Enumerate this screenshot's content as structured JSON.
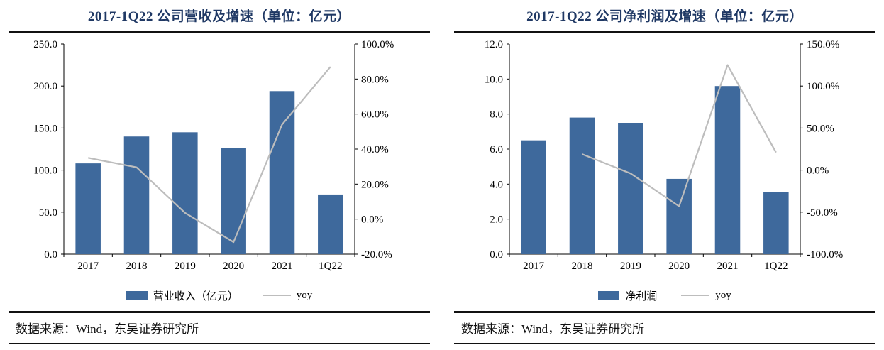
{
  "colors": {
    "bar": "#3E699C",
    "line": "#BDBDBD",
    "title": "#1F3864",
    "rule": "#111111",
    "axis": "#000000"
  },
  "chart_data": [
    {
      "type": "bar",
      "subtype": "bar+line-dual-axis",
      "title": "2017-1Q22 公司营收及增速（单位：亿元）",
      "categories": [
        "2017",
        "2018",
        "2019",
        "2020",
        "2021",
        "1Q22"
      ],
      "series": [
        {
          "name": "营业收入（亿元）",
          "kind": "bar",
          "axis": "left",
          "values": [
            108,
            140,
            145,
            126,
            194,
            71
          ]
        },
        {
          "name": "yoy",
          "kind": "line",
          "axis": "right",
          "values": [
            35,
            29.6,
            3.6,
            -13.1,
            54,
            87
          ]
        }
      ],
      "left_axis": {
        "min": 0,
        "max": 250,
        "ticks": [
          0,
          50,
          100,
          150,
          200,
          250
        ],
        "labels": [
          "0.0",
          "50.0",
          "100.0",
          "150.0",
          "200.0",
          "250.0"
        ]
      },
      "right_axis": {
        "min": -20,
        "max": 100,
        "ticks": [
          -20,
          0,
          20,
          40,
          60,
          80,
          100
        ],
        "labels": [
          "-20.0%",
          "0.0%",
          "20.0%",
          "40.0%",
          "60.0%",
          "80.0%",
          "100.0%"
        ]
      },
      "grid": false,
      "legend_position": "bottom",
      "source": "数据来源：Wind，东吴证券研究所"
    },
    {
      "type": "bar",
      "subtype": "bar+line-dual-axis",
      "title": "2017-1Q22 公司净利润及增速（单位：亿元）",
      "categories": [
        "2017",
        "2018",
        "2019",
        "2020",
        "2021",
        "1Q22"
      ],
      "series": [
        {
          "name": "净利润",
          "kind": "bar",
          "axis": "left",
          "values": [
            6.5,
            7.8,
            7.5,
            4.3,
            9.6,
            3.55
          ]
        },
        {
          "name": "yoy",
          "kind": "line",
          "axis": "right",
          "values": [
            null,
            19,
            -4,
            -43,
            125,
            21
          ]
        }
      ],
      "left_axis": {
        "min": 0,
        "max": 12,
        "ticks": [
          0,
          2,
          4,
          6,
          8,
          10,
          12
        ],
        "labels": [
          "0.0",
          "2.0",
          "4.0",
          "6.0",
          "8.0",
          "10.0",
          "12.0"
        ]
      },
      "right_axis": {
        "min": -100,
        "max": 150,
        "ticks": [
          -100,
          -50,
          0,
          50,
          100,
          150
        ],
        "labels": [
          "-100.0%",
          "-50.0%",
          "0.0%",
          "50.0%",
          "100.0%",
          "150.0%"
        ]
      },
      "grid": false,
      "legend_position": "bottom",
      "source": "数据来源：Wind，东吴证券研究所"
    }
  ]
}
